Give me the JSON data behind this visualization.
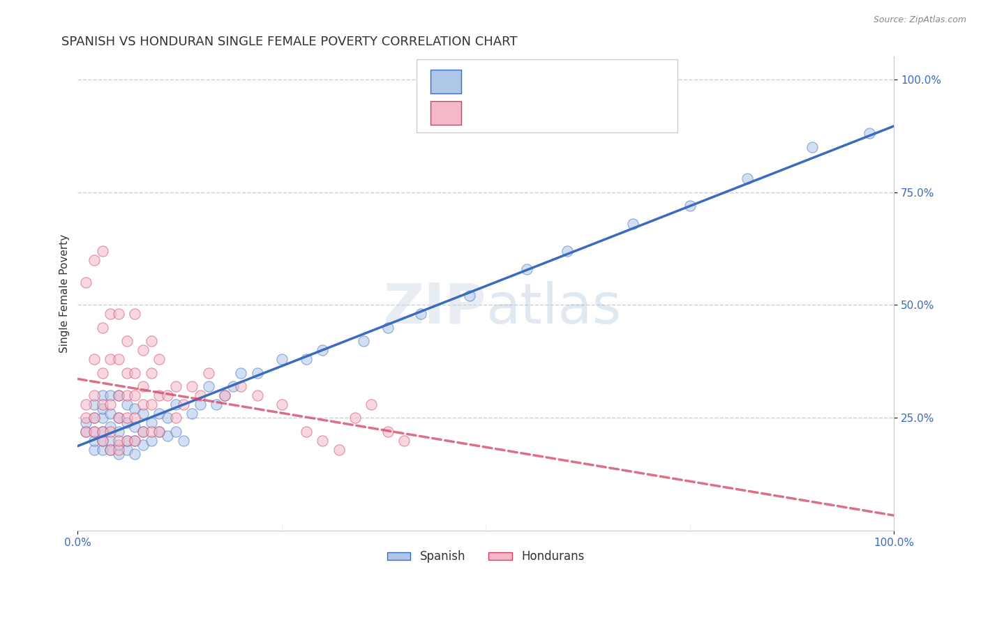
{
  "title": "SPANISH VS HONDURAN SINGLE FEMALE POVERTY CORRELATION CHART",
  "source": "Source: ZipAtlas.com",
  "ylabel": "Single Female Poverty",
  "ytick_labels_right": [
    "100.0%",
    "75.0%",
    "50.0%",
    "25.0%"
  ],
  "ytick_positions": [
    1.0,
    0.75,
    0.5,
    0.25
  ],
  "xtick_labels": [
    "0.0%",
    "100.0%"
  ],
  "xtick_positions": [
    0.0,
    1.0
  ],
  "watermark": "ZIPatlas",
  "legend_label1": "Spanish",
  "legend_label2": "Hondurans",
  "color_spanish": "#aec6e8",
  "color_honduran": "#f4b8c8",
  "color_line_spanish": "#3a6bbf",
  "color_line_honduran": "#d04060",
  "title_color": "#333333",
  "axis_label_color": "#333333",
  "tick_color": "#3a6bbf",
  "legend_text_color": "#3a6bbf",
  "background_color": "#ffffff",
  "grid_color": "#c8c8d8",
  "title_fontsize": 13,
  "axis_label_fontsize": 11,
  "tick_fontsize": 11,
  "legend_fontsize": 13,
  "marker_size": 120,
  "marker_alpha": 0.55,
  "line_width": 2.5,
  "spanish_x": [
    0.01,
    0.01,
    0.02,
    0.02,
    0.02,
    0.02,
    0.02,
    0.03,
    0.03,
    0.03,
    0.03,
    0.03,
    0.03,
    0.04,
    0.04,
    0.04,
    0.04,
    0.04,
    0.05,
    0.05,
    0.05,
    0.05,
    0.05,
    0.06,
    0.06,
    0.06,
    0.06,
    0.07,
    0.07,
    0.07,
    0.07,
    0.08,
    0.08,
    0.08,
    0.09,
    0.09,
    0.1,
    0.1,
    0.11,
    0.11,
    0.12,
    0.12,
    0.13,
    0.14,
    0.15,
    0.16,
    0.17,
    0.18,
    0.19,
    0.2,
    0.22,
    0.25,
    0.28,
    0.3,
    0.35,
    0.38,
    0.42,
    0.48,
    0.55,
    0.6,
    0.68,
    0.75,
    0.82,
    0.9,
    0.97
  ],
  "spanish_y": [
    0.22,
    0.24,
    0.18,
    0.2,
    0.22,
    0.25,
    0.28,
    0.18,
    0.2,
    0.22,
    0.25,
    0.27,
    0.3,
    0.18,
    0.2,
    0.23,
    0.26,
    0.3,
    0.17,
    0.19,
    0.22,
    0.25,
    0.3,
    0.18,
    0.2,
    0.24,
    0.28,
    0.17,
    0.2,
    0.23,
    0.27,
    0.19,
    0.22,
    0.26,
    0.2,
    0.24,
    0.22,
    0.26,
    0.21,
    0.25,
    0.22,
    0.28,
    0.2,
    0.26,
    0.28,
    0.32,
    0.28,
    0.3,
    0.32,
    0.35,
    0.35,
    0.38,
    0.38,
    0.4,
    0.42,
    0.45,
    0.48,
    0.52,
    0.58,
    0.62,
    0.68,
    0.72,
    0.78,
    0.85,
    0.88
  ],
  "honduran_x": [
    0.01,
    0.01,
    0.01,
    0.01,
    0.02,
    0.02,
    0.02,
    0.02,
    0.02,
    0.03,
    0.03,
    0.03,
    0.03,
    0.03,
    0.03,
    0.04,
    0.04,
    0.04,
    0.04,
    0.04,
    0.05,
    0.05,
    0.05,
    0.05,
    0.05,
    0.05,
    0.06,
    0.06,
    0.06,
    0.06,
    0.06,
    0.07,
    0.07,
    0.07,
    0.07,
    0.07,
    0.08,
    0.08,
    0.08,
    0.08,
    0.09,
    0.09,
    0.09,
    0.09,
    0.1,
    0.1,
    0.1,
    0.11,
    0.12,
    0.12,
    0.13,
    0.14,
    0.15,
    0.16,
    0.18,
    0.2,
    0.22,
    0.25,
    0.28,
    0.3,
    0.32,
    0.34,
    0.36,
    0.38,
    0.4
  ],
  "honduran_y": [
    0.22,
    0.25,
    0.28,
    0.55,
    0.22,
    0.25,
    0.3,
    0.38,
    0.6,
    0.2,
    0.22,
    0.28,
    0.35,
    0.45,
    0.62,
    0.18,
    0.22,
    0.28,
    0.38,
    0.48,
    0.18,
    0.2,
    0.25,
    0.3,
    0.38,
    0.48,
    0.2,
    0.25,
    0.3,
    0.35,
    0.42,
    0.2,
    0.25,
    0.3,
    0.35,
    0.48,
    0.22,
    0.28,
    0.32,
    0.4,
    0.22,
    0.28,
    0.35,
    0.42,
    0.22,
    0.3,
    0.38,
    0.3,
    0.25,
    0.32,
    0.28,
    0.32,
    0.3,
    0.35,
    0.3,
    0.32,
    0.3,
    0.28,
    0.22,
    0.2,
    0.18,
    0.25,
    0.28,
    0.22,
    0.2
  ],
  "xlim": [
    0.0,
    1.0
  ],
  "ylim": [
    0.0,
    1.05
  ]
}
